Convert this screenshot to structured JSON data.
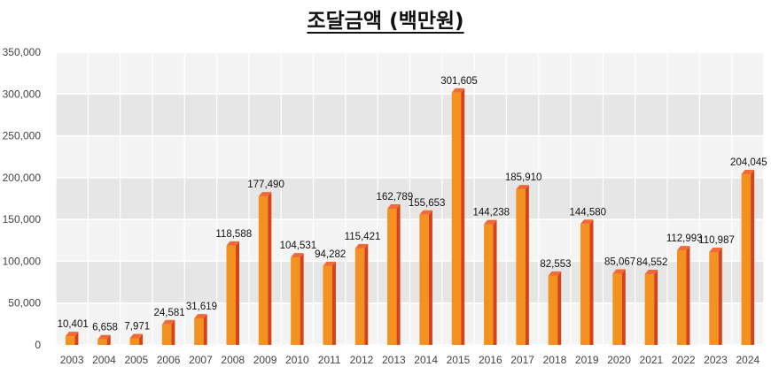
{
  "chart_data": {
    "type": "bar",
    "title": "조달금액 (백만원)",
    "categories": [
      "2003",
      "2004",
      "2005",
      "2006",
      "2007",
      "2008",
      "2009",
      "2010",
      "2011",
      "2012",
      "2013",
      "2014",
      "2015",
      "2016",
      "2017",
      "2018",
      "2019",
      "2020",
      "2021",
      "2022",
      "2023",
      "2024"
    ],
    "values": [
      10401,
      6658,
      7971,
      24581,
      31619,
      118588,
      177490,
      104531,
      94282,
      115421,
      162789,
      155653,
      301605,
      144238,
      185910,
      82553,
      144580,
      85067,
      84552,
      112993,
      110987,
      204045
    ],
    "value_labels": [
      "10,401",
      "6,658",
      "7,971",
      "24,581",
      "31,619",
      "118,588",
      "177,490",
      "104,531",
      "94,282",
      "115,421",
      "162,789",
      "155,653",
      "301,605",
      "144,238",
      "185,910",
      "82,553",
      "144,580",
      "85,067",
      "84,552",
      "112,993",
      "110,987",
      "204,045"
    ],
    "yticks": [
      0,
      50000,
      100000,
      150000,
      200000,
      250000,
      300000,
      350000
    ],
    "ytick_labels": [
      "0",
      "50,000",
      "100,000",
      "150,000",
      "200,000",
      "250,000",
      "300,000",
      "350,000"
    ],
    "ylim": [
      0,
      350000
    ],
    "xlabel": "",
    "ylabel": "",
    "grid": true,
    "legend": "none",
    "colors": {
      "bar_front": "#f39220",
      "bar_side": "#d4431a",
      "bar_top": "#f26a35",
      "band": "#e6e6e6",
      "band_alt": "#f4f4f4",
      "gridline": "#ffffff"
    }
  }
}
